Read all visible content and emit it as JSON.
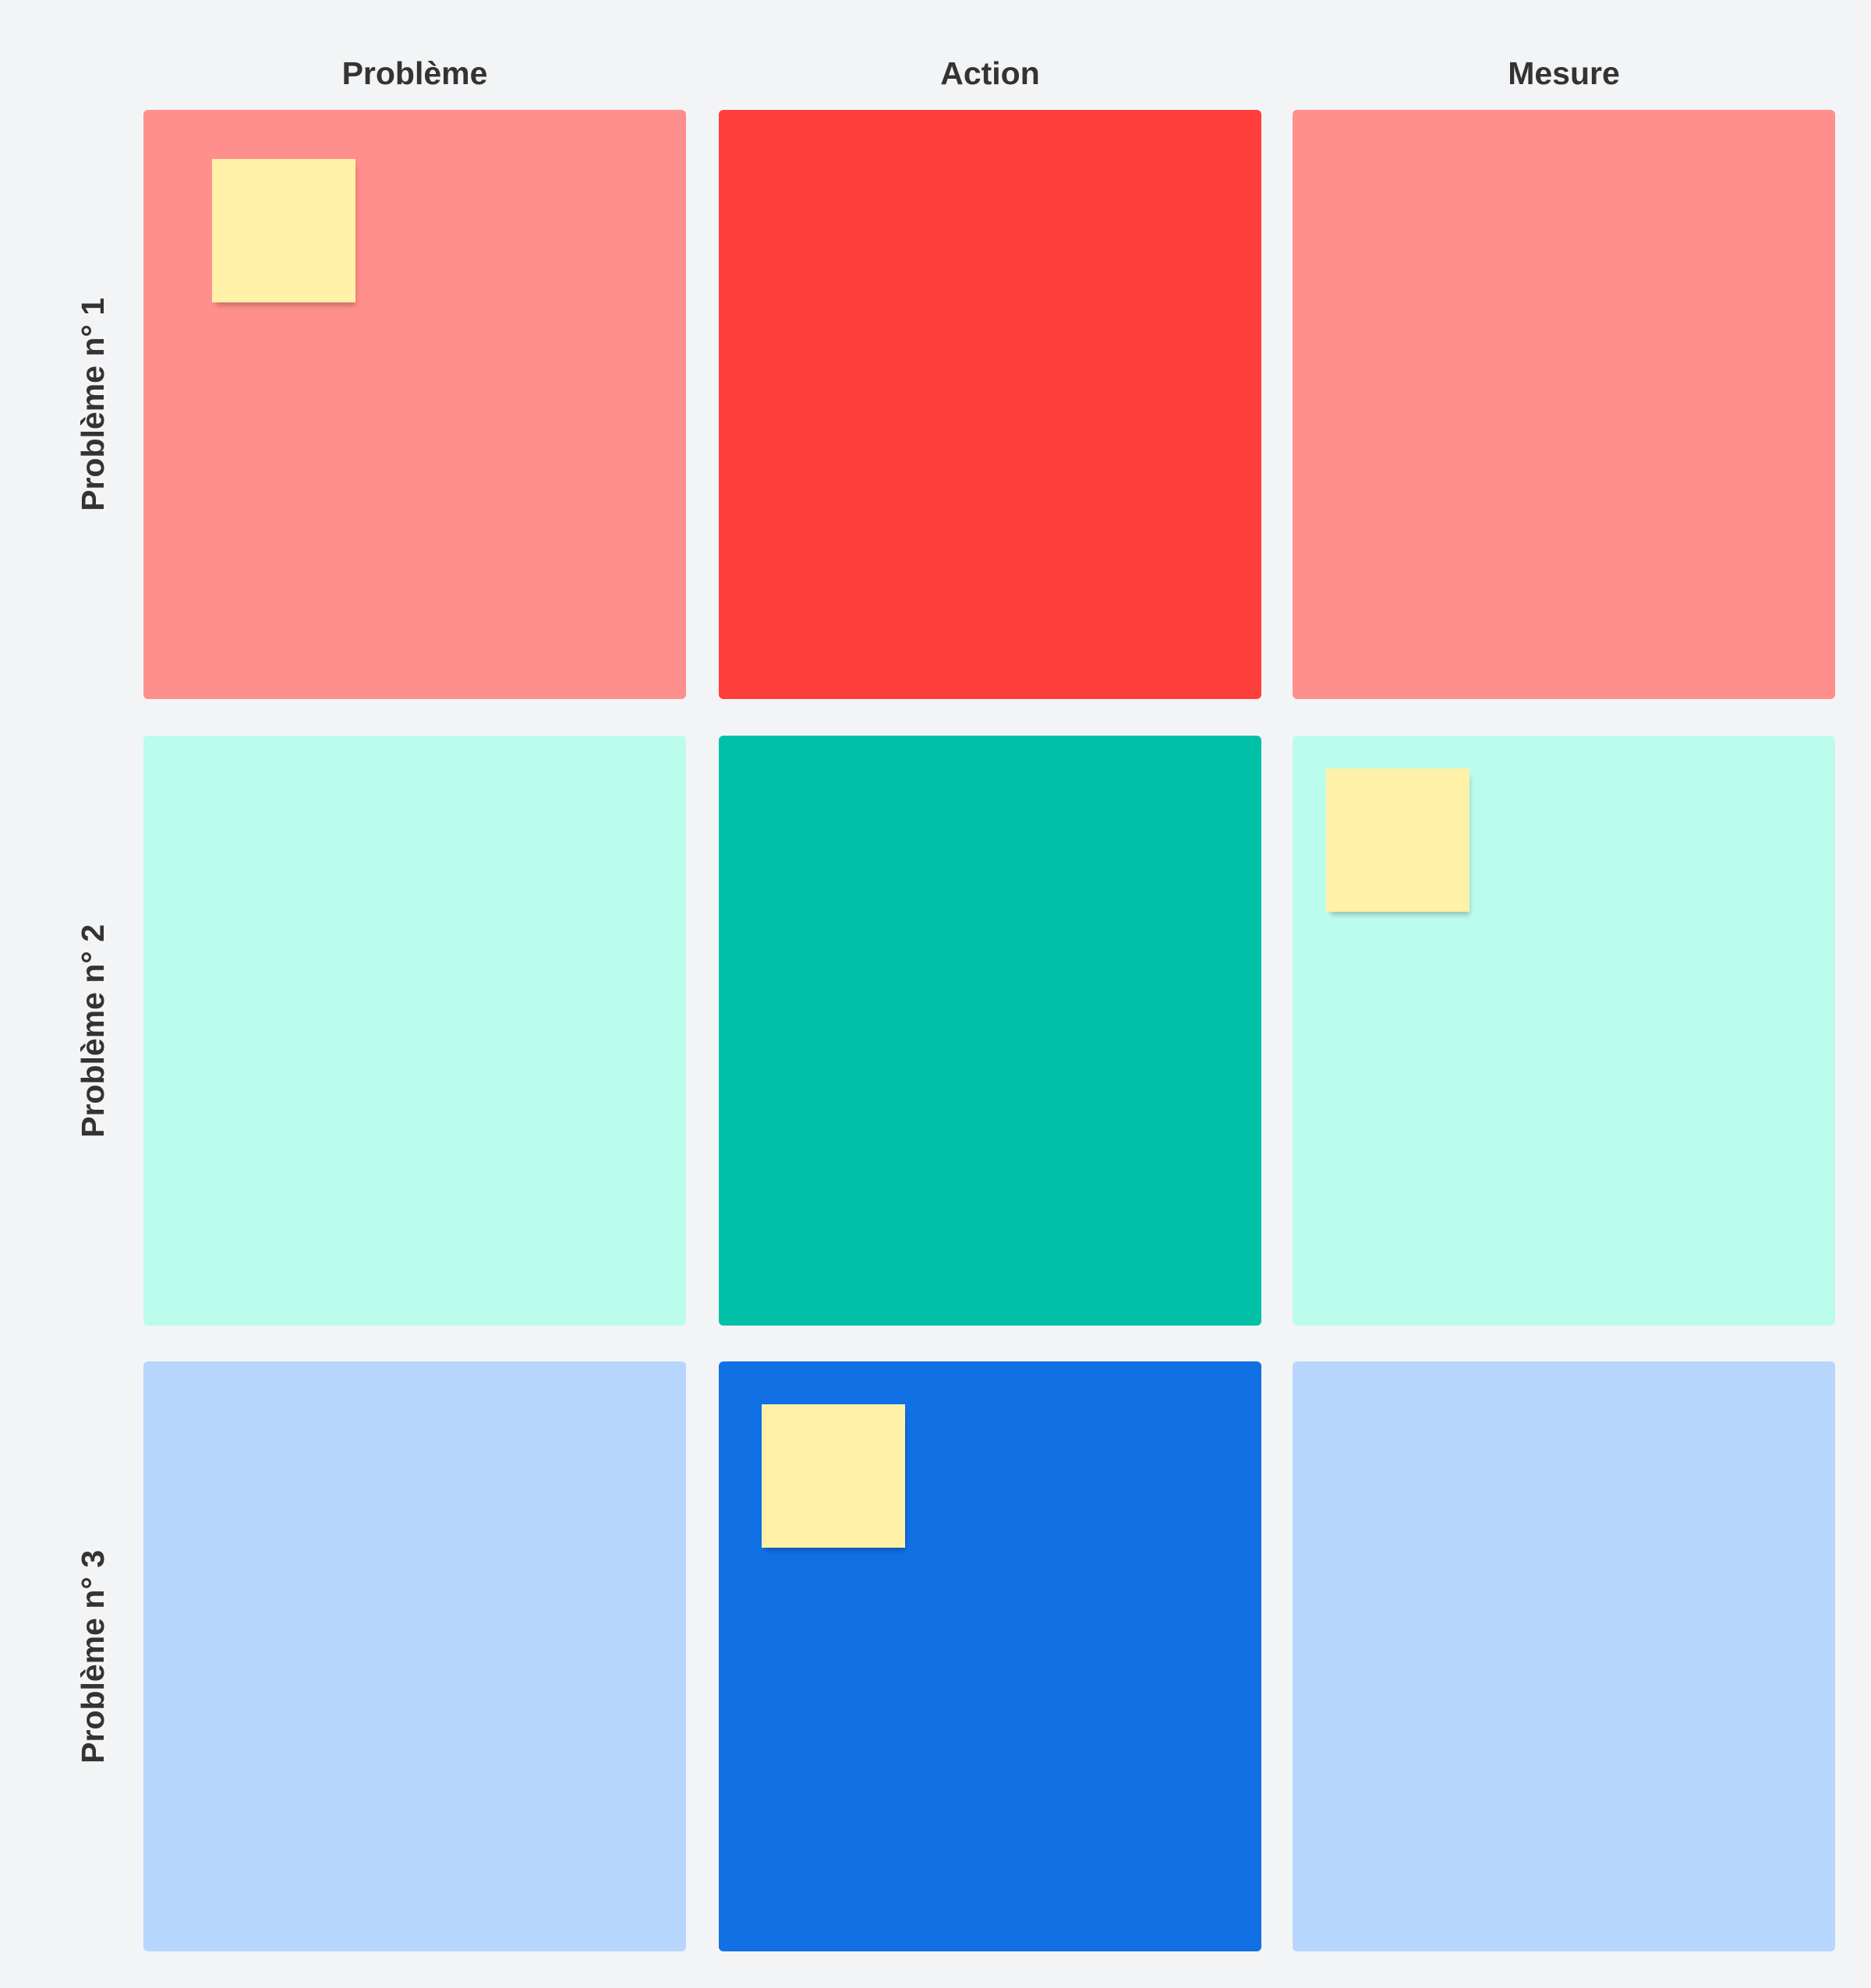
{
  "columns": [
    "Problème",
    "Action",
    "Mesure"
  ],
  "rows": [
    "Problème n° 1",
    "Problème n° 2",
    "Problème n° 3"
  ],
  "colors": {
    "background": "#f3f4f6",
    "row1_light": "#ff8f8c",
    "row1_dark": "#ff3f3d",
    "row2_light": "#bbfcec",
    "row2_dark": "#00c1a8",
    "row3_light": "#b7d6fd",
    "row3_dark": "#1170e4",
    "sticky_note": "#fff1a8"
  },
  "sticky_notes": [
    {
      "row": "Problème n° 1",
      "column": "Problème"
    },
    {
      "row": "Problème n° 2",
      "column": "Mesure"
    },
    {
      "row": "Problème n° 3",
      "column": "Action"
    }
  ]
}
